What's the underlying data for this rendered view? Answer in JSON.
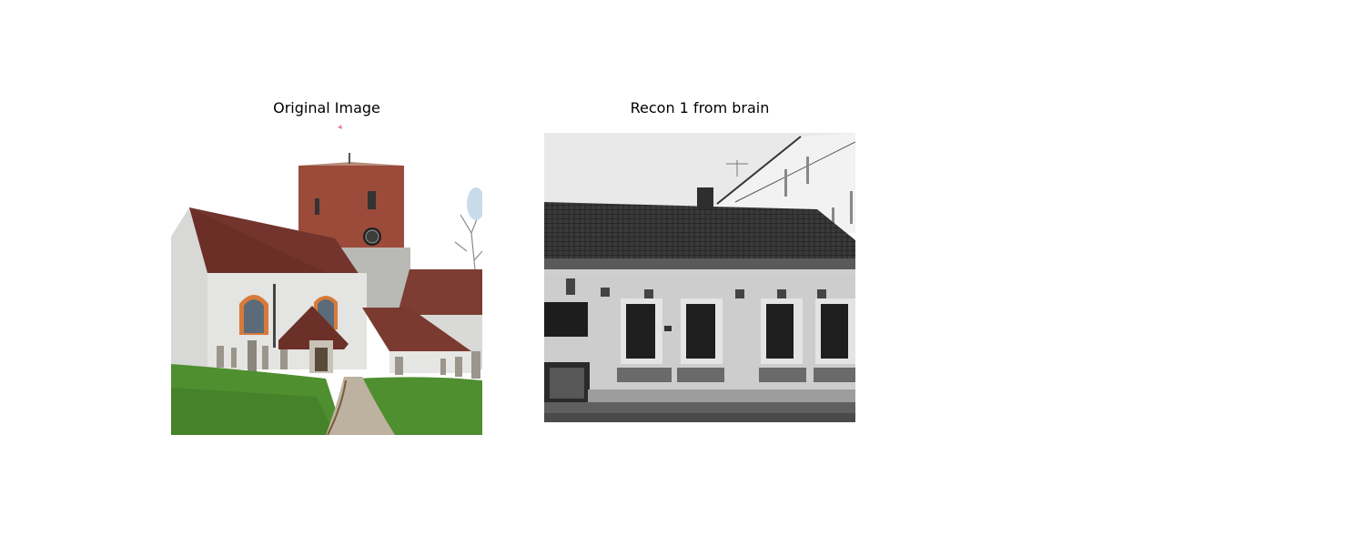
{
  "figure": {
    "panels": [
      {
        "id": "original",
        "title": "Original Image"
      },
      {
        "id": "recon1",
        "title": "Recon 1 from brain"
      }
    ]
  }
}
